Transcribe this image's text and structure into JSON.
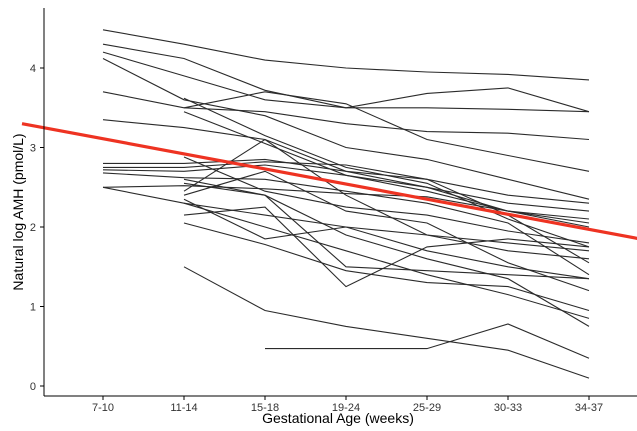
{
  "chart_data": {
    "type": "line",
    "title": "",
    "xlabel": "Gestational Age (weeks)",
    "ylabel": "Natural log AMH (pmol/L)",
    "categories": [
      "7-10",
      "11-14",
      "15-18",
      "19-24",
      "25-29",
      "30-33",
      "34-37"
    ],
    "yticks": [
      0,
      1,
      2,
      3,
      4
    ],
    "ylim": [
      -0.08,
      4.6
    ],
    "grid": false,
    "legend": "none",
    "subject_color": "#2b2b2b",
    "trend_color": "#ee3322",
    "series": [
      {
        "values": [
          4.48,
          4.3,
          4.1,
          4.0,
          3.95,
          3.92,
          3.85
        ]
      },
      {
        "values": [
          4.3,
          4.12,
          3.72,
          3.5,
          3.68,
          3.75,
          3.45
        ]
      },
      {
        "values": [
          4.2,
          3.9,
          3.6,
          3.5,
          3.5,
          3.48,
          3.45
        ]
      },
      {
        "values": [
          4.12,
          3.6,
          3.4,
          3.0,
          2.85,
          2.6,
          2.35
        ]
      },
      {
        "values": [
          3.7,
          3.5,
          3.45,
          3.3,
          3.2,
          3.18,
          3.1
        ]
      },
      {
        "values": [
          3.35,
          3.25,
          3.1,
          2.7,
          2.5,
          2.3,
          2.2
        ]
      },
      {
        "values": [
          null,
          3.5,
          3.7,
          3.55,
          3.1,
          2.9,
          2.7
        ]
      },
      {
        "values": [
          null,
          3.62,
          3.15,
          2.75,
          2.55,
          2.1,
          1.75
        ]
      },
      {
        "values": [
          null,
          3.45,
          3.05,
          2.65,
          2.5,
          2.2,
          2.1
        ]
      },
      {
        "values": [
          2.8,
          2.8,
          2.85,
          2.7,
          2.6,
          2.4,
          2.3
        ]
      },
      {
        "values": [
          2.75,
          2.75,
          2.82,
          2.78,
          2.6,
          2.15,
          1.55
        ]
      },
      {
        "values": [
          2.72,
          2.7,
          2.78,
          2.65,
          2.45,
          2.2,
          2.0
        ]
      },
      {
        "values": [
          2.68,
          2.62,
          2.6,
          2.45,
          2.3,
          2.05,
          1.4
        ]
      },
      {
        "values": [
          2.5,
          2.52,
          2.48,
          2.42,
          2.38,
          2.2,
          2.05
        ]
      },
      {
        "values": [
          2.5,
          2.3,
          2.15,
          2.0,
          1.9,
          1.8,
          1.7
        ]
      },
      {
        "values": [
          null,
          2.88,
          2.45,
          2.25,
          2.15,
          1.95,
          1.8
        ]
      },
      {
        "values": [
          null,
          2.55,
          2.4,
          1.5,
          1.45,
          1.4,
          1.35
        ]
      },
      {
        "values": [
          null,
          2.15,
          2.25,
          1.25,
          1.75,
          1.85,
          1.75
        ]
      },
      {
        "values": [
          null,
          2.05,
          1.78,
          1.45,
          1.3,
          1.25,
          0.95
        ]
      },
      {
        "values": [
          null,
          2.45,
          3.1,
          2.4,
          1.9,
          1.7,
          1.6
        ]
      },
      {
        "values": [
          null,
          2.35,
          1.85,
          2.0,
          1.7,
          1.5,
          1.35
        ]
      },
      {
        "values": [
          null,
          2.4,
          2.7,
          2.2,
          2.05,
          1.55,
          1.2
        ]
      },
      {
        "values": [
          null,
          2.3,
          2.0,
          1.7,
          1.4,
          1.15,
          0.85
        ]
      },
      {
        "values": [
          null,
          2.6,
          2.4,
          1.9,
          1.6,
          1.35,
          0.75
        ]
      },
      {
        "values": [
          null,
          1.5,
          0.95,
          0.75,
          0.6,
          0.45,
          0.1
        ]
      },
      {
        "values": [
          null,
          null,
          0.47,
          0.47,
          0.47,
          0.78,
          0.35
        ]
      }
    ],
    "trend": {
      "x_start": -1.0,
      "y_start": 3.3,
      "x_end": 7.0,
      "y_end": 1.78
    }
  }
}
